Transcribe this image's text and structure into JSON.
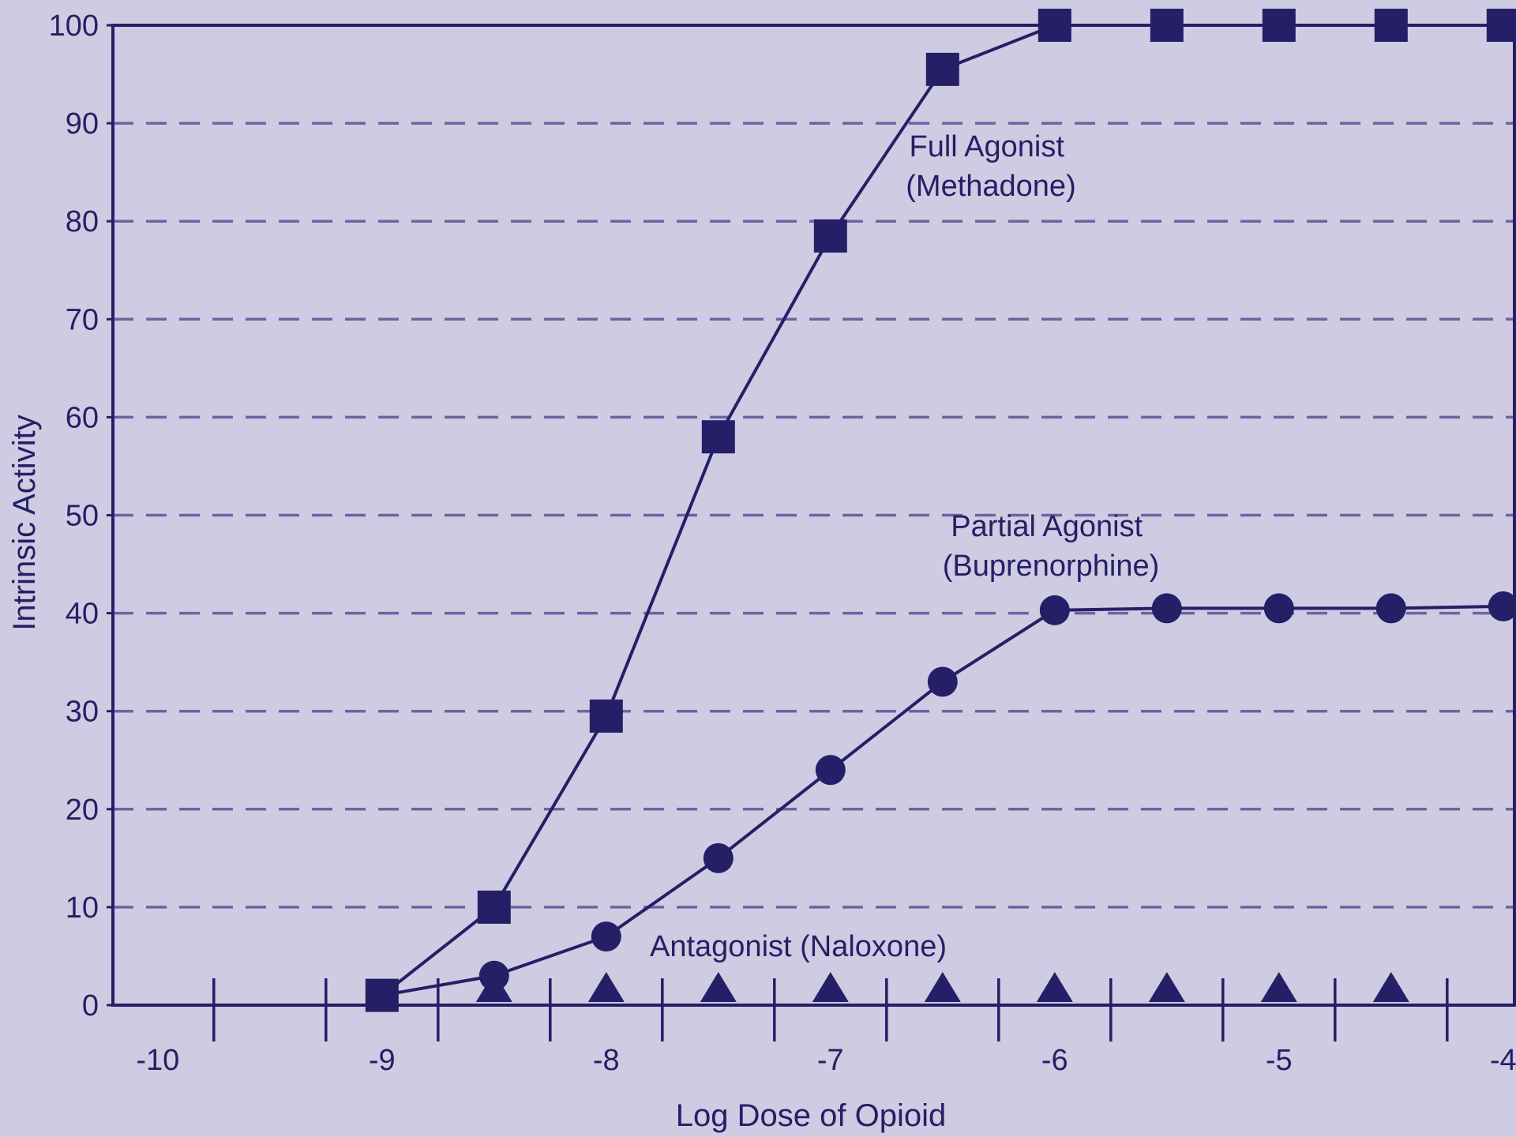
{
  "chart_data": {
    "type": "line",
    "title": "",
    "xlabel": "Log Dose of Opioid",
    "ylabel": "Intrinsic Activity",
    "xlim": [
      -10.2,
      -3.95
    ],
    "ylim": [
      0,
      100
    ],
    "x_ticks": [
      -10,
      -9,
      -8,
      -7,
      -6,
      -5,
      -4
    ],
    "x_tick_labels": [
      "-10",
      "-9",
      "-8",
      "-7",
      "-6",
      "-5",
      "-4"
    ],
    "y_ticks": [
      0,
      10,
      20,
      30,
      40,
      50,
      60,
      70,
      80,
      90,
      100
    ],
    "y_tick_labels": [
      "0",
      "10",
      "20",
      "30",
      "40",
      "50",
      "60",
      "70",
      "80",
      "90",
      "100"
    ],
    "grid": "horizontal dashed",
    "colors": {
      "background": "#cfcbe2",
      "ink": "#241f66",
      "grid": "#6b64a3"
    },
    "series": [
      {
        "marker": "square",
        "label_lines": [
          "Full Agonist",
          "(Methadone)"
        ],
        "x": [
          -9,
          -8.5,
          -8,
          -7.5,
          -7,
          -6.5,
          -6,
          -5.5,
          -5,
          -4.5,
          -4
        ],
        "y": [
          1,
          10,
          29.5,
          58,
          78.5,
          95.5,
          100,
          100,
          100,
          100,
          100
        ],
        "connected": true
      },
      {
        "marker": "circle",
        "label_lines": [
          "Partial Agonist",
          "(Buprenorphine)"
        ],
        "x": [
          -9,
          -8.5,
          -8,
          -7.5,
          -7,
          -6.5,
          -6,
          -5.5,
          -5,
          -4.5,
          -4
        ],
        "y": [
          1,
          3,
          7,
          15,
          24,
          33,
          40.3,
          40.5,
          40.5,
          40.5,
          40.7
        ],
        "connected": true
      },
      {
        "marker": "triangle",
        "label_lines": [
          "Antagonist (Naloxone)"
        ],
        "x": [
          -8.5,
          -8,
          -7.5,
          -7,
          -6.5,
          -6,
          -5.5,
          -5,
          -4.5
        ],
        "y": [
          0,
          0,
          0,
          0,
          0,
          0,
          0,
          0,
          0
        ],
        "connected": false
      }
    ]
  }
}
